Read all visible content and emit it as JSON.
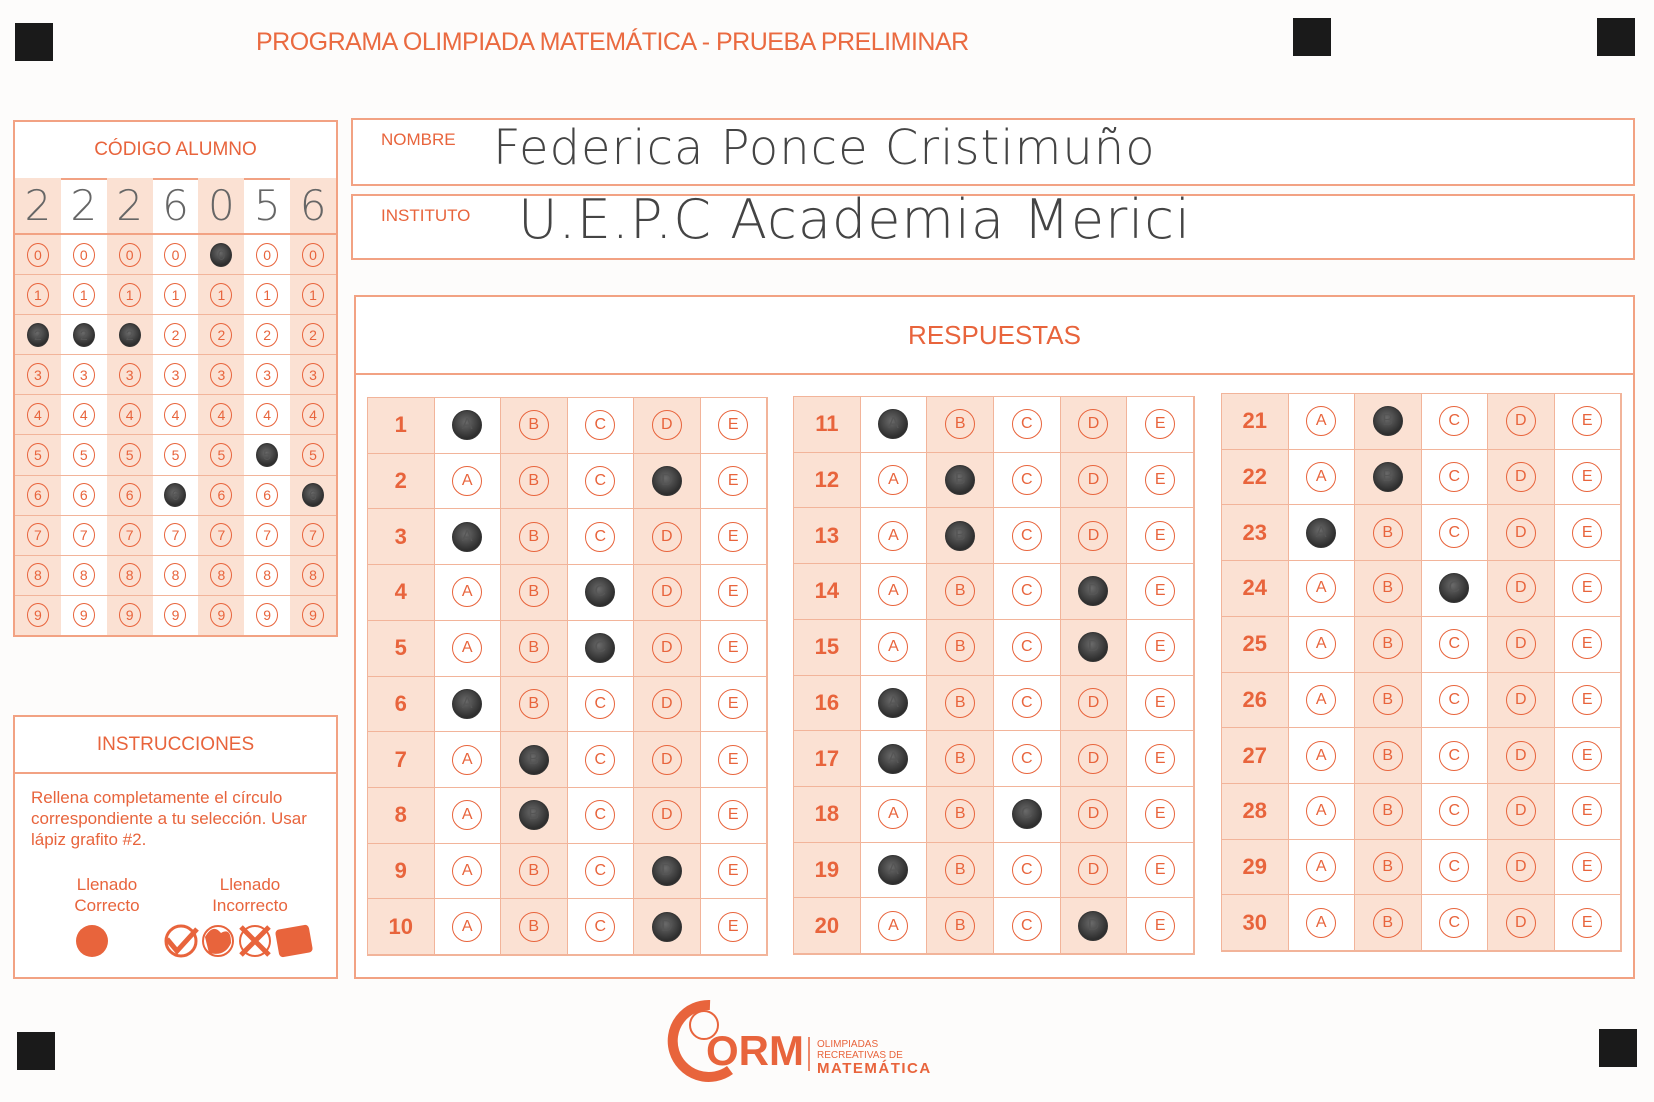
{
  "title": "PROGRAMA OLIMPIADA MATEMÁTICA  - PRUEBA PRELIMINAR",
  "student_code": {
    "label": "CÓDIGO ALUMNO",
    "digits": [
      "2",
      "2",
      "2",
      "6",
      "0",
      "5",
      "6"
    ],
    "bubble_values": [
      "0",
      "1",
      "2",
      "3",
      "4",
      "5",
      "6",
      "7",
      "8",
      "9"
    ]
  },
  "nombre": {
    "label": "NOMBRE",
    "value": "Federica Ponce Cristimuño"
  },
  "instituto": {
    "label": "INSTITUTO",
    "value": "U.E.P.C Academia Merici"
  },
  "respuestas": {
    "title": "RESPUESTAS",
    "options": [
      "A",
      "B",
      "C",
      "D",
      "E"
    ],
    "questions": [
      {
        "number": "1",
        "answer": "A"
      },
      {
        "number": "2",
        "answer": "D"
      },
      {
        "number": "3",
        "answer": "A"
      },
      {
        "number": "4",
        "answer": "C"
      },
      {
        "number": "5",
        "answer": "C"
      },
      {
        "number": "6",
        "answer": "A"
      },
      {
        "number": "7",
        "answer": "B"
      },
      {
        "number": "8",
        "answer": "B"
      },
      {
        "number": "9",
        "answer": "D"
      },
      {
        "number": "10",
        "answer": "D"
      },
      {
        "number": "11",
        "answer": "A"
      },
      {
        "number": "12",
        "answer": "B"
      },
      {
        "number": "13",
        "answer": "B"
      },
      {
        "number": "14",
        "answer": "D"
      },
      {
        "number": "15",
        "answer": "D"
      },
      {
        "number": "16",
        "answer": "A"
      },
      {
        "number": "17",
        "answer": "A"
      },
      {
        "number": "18",
        "answer": "C"
      },
      {
        "number": "19",
        "answer": "A"
      },
      {
        "number": "20",
        "answer": "D"
      },
      {
        "number": "21",
        "answer": "B"
      },
      {
        "number": "22",
        "answer": "B"
      },
      {
        "number": "23",
        "answer": "A"
      },
      {
        "number": "24",
        "answer": "C"
      },
      {
        "number": "25",
        "answer": ""
      },
      {
        "number": "26",
        "answer": ""
      },
      {
        "number": "27",
        "answer": ""
      },
      {
        "number": "28",
        "answer": ""
      },
      {
        "number": "29",
        "answer": ""
      },
      {
        "number": "30",
        "answer": ""
      }
    ]
  },
  "instrucciones": {
    "title": "INSTRUCCIONES",
    "text": "Rellena completamente el círculo correspondiente a tu selección. Usar lápiz grafito #2.",
    "correct_label_1": "Llenado",
    "correct_label_2": "Correcto",
    "incorrect_label_1": "Llenado",
    "incorrect_label_2": "Incorrecto"
  },
  "logo": {
    "mark": "ORM",
    "line1": "OLIMPIADAS",
    "line2": "RECREATIVAS DE",
    "line3": "MATEMÁTICA"
  },
  "colors": {
    "accent": "#e8643c",
    "shade": "#fbe1d3",
    "fill": "#333333"
  }
}
